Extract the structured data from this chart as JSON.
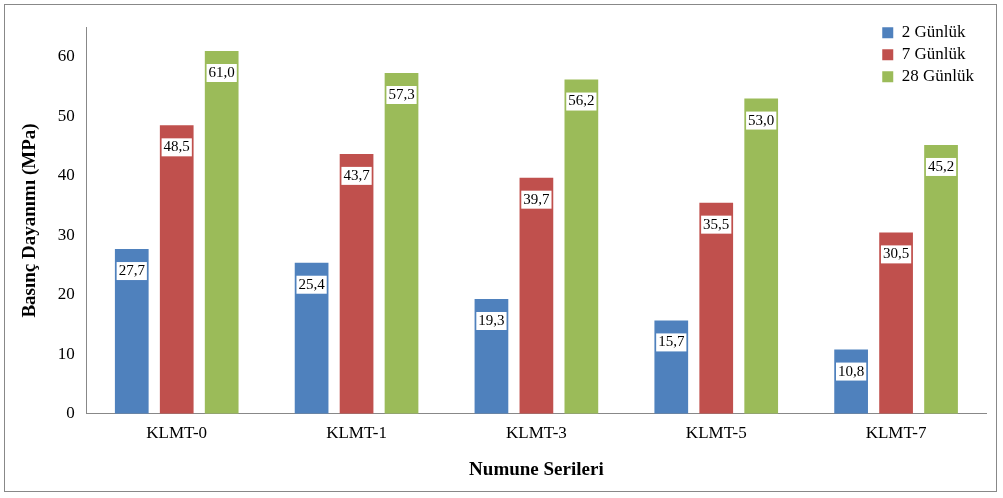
{
  "chart_data": {
    "type": "bar",
    "xlabel": "Numune Serileri",
    "ylabel": "Basınç Dayanımı (MPa)",
    "categories": [
      "KLMT-0",
      "KLMT-1",
      "KLMT-3",
      "KLMT-5",
      "KLMT-7"
    ],
    "series": [
      {
        "name": "2 Günlük",
        "color": "#4f81bd",
        "values": [
          27.7,
          25.4,
          19.3,
          15.7,
          10.8
        ],
        "value_labels": [
          "27,7",
          "25,4",
          "19,3",
          "15,7",
          "10,8"
        ]
      },
      {
        "name": "7 Günlük",
        "color": "#c0504d",
        "values": [
          48.5,
          43.7,
          39.7,
          35.5,
          30.5
        ],
        "value_labels": [
          "48,5",
          "43,7",
          "39,7",
          "35,5",
          "30,5"
        ]
      },
      {
        "name": "28 Günlük",
        "color": "#9bbb59",
        "values": [
          61.0,
          57.3,
          56.2,
          53.0,
          45.2
        ],
        "value_labels": [
          "61,0",
          "57,3",
          "56,2",
          "53,0",
          "45,2"
        ]
      }
    ],
    "ylim": [
      0,
      65
    ],
    "yticks": [
      0,
      10,
      20,
      30,
      40,
      50,
      60
    ],
    "grid": false,
    "legend": "top right"
  }
}
